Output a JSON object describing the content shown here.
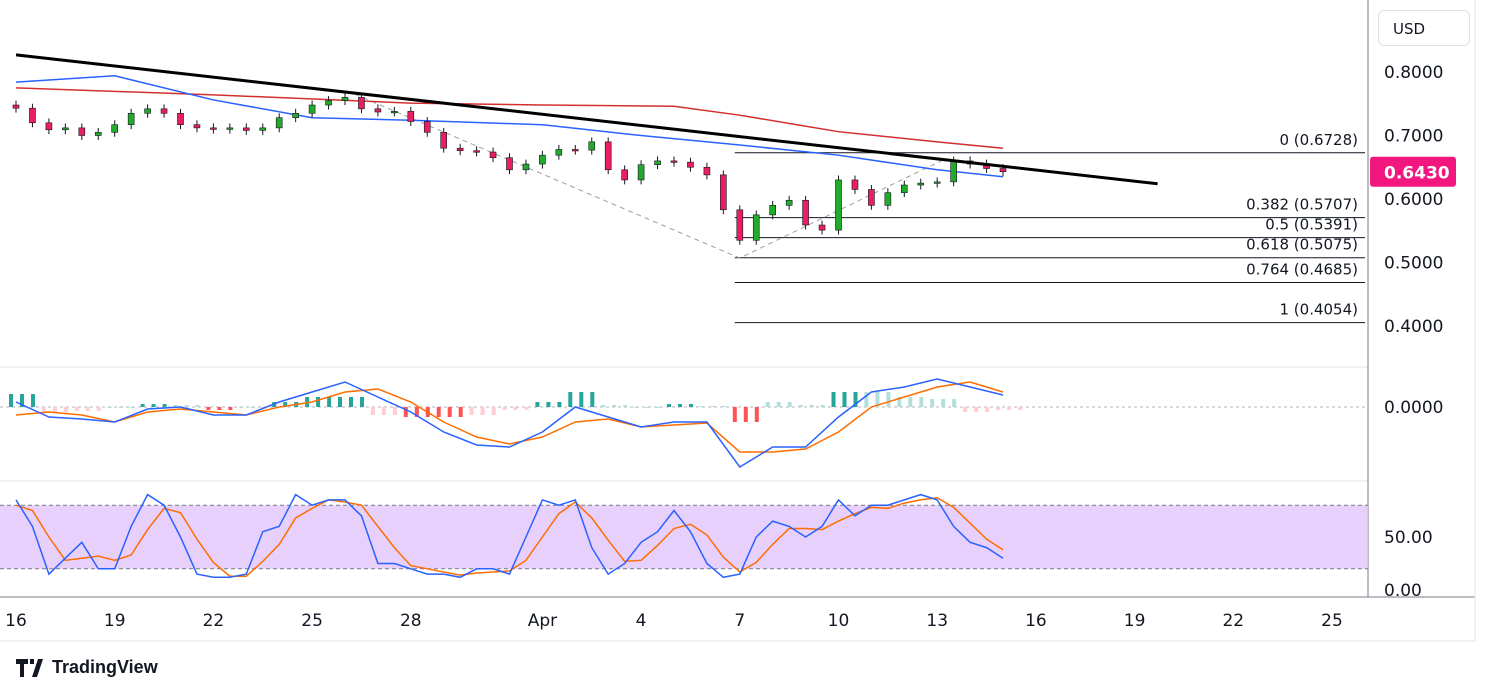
{
  "currency_button": "USD",
  "brand": "TradingView",
  "colors": {
    "up": "#22ab2b",
    "down": "#e91e63",
    "ma_fast": "#2962ff",
    "ma_slow": "#d32f2f",
    "trendline": "#000000",
    "macd": "#2962ff",
    "signal": "#ff6d00",
    "stoch_k": "#2962ff",
    "stoch_d": "#ff6d00",
    "stoch_band": "#e1c4fb",
    "price_badge": "#f2167f"
  },
  "last_price": "0.6430",
  "chart_data": [
    {
      "type": "candlestick",
      "timeframe_note": "",
      "x_tick_labels": [
        "16",
        "19",
        "22",
        "25",
        "28",
        "Apr",
        "4",
        "7",
        "10",
        "13",
        "16",
        "19",
        "22",
        "25"
      ],
      "x_tick_days": [
        0,
        3,
        6,
        9,
        12,
        16,
        19,
        22,
        25,
        28,
        31,
        34,
        37,
        40
      ],
      "y_tick_labels": [
        "0.8000",
        "0.7000",
        "0.6000",
        "0.5000",
        "0.4000"
      ],
      "ylim": [
        0.39,
        0.83
      ],
      "bar_step_days": 0.5,
      "close": [
        0.743,
        0.72,
        0.709,
        0.712,
        0.7,
        0.705,
        0.717,
        0.735,
        0.742,
        0.735,
        0.717,
        0.712,
        0.71,
        0.712,
        0.708,
        0.712,
        0.728,
        0.735,
        0.748,
        0.755,
        0.76,
        0.742,
        0.737,
        0.738,
        0.722,
        0.705,
        0.68,
        0.676,
        0.674,
        0.665,
        0.646,
        0.655,
        0.669,
        0.678,
        0.677,
        0.69,
        0.646,
        0.63,
        0.654,
        0.66,
        0.658,
        0.65,
        0.638,
        0.583,
        0.535,
        0.575,
        0.59,
        0.598,
        0.559,
        0.551,
        0.63,
        0.615,
        0.59,
        0.61,
        0.622,
        0.625,
        0.627,
        0.66,
        0.655,
        0.648,
        0.643
      ],
      "ma_fast": {
        "days": [
          0,
          3,
          6,
          9,
          12,
          16,
          19,
          22,
          25,
          28,
          30
        ],
        "values": [
          0.784,
          0.794,
          0.756,
          0.728,
          0.724,
          0.717,
          0.7,
          0.685,
          0.669,
          0.646,
          0.635
        ]
      },
      "ma_slow": {
        "days": [
          0,
          6,
          12,
          16,
          20,
          22,
          25,
          28,
          30
        ],
        "values": [
          0.775,
          0.764,
          0.751,
          0.748,
          0.746,
          0.732,
          0.706,
          0.69,
          0.68
        ]
      },
      "trendline": {
        "from": [
          0,
          0.827
        ],
        "to": [
          34.7,
          0.624
        ]
      },
      "fib_path": [
        [
          10.3,
          0.765
        ],
        [
          22,
          0.507
        ],
        [
          28.2,
          0.662
        ]
      ],
      "fib_levels": [
        {
          "label": "0 (0.6728)",
          "value": 0.6728
        },
        {
          "label": "0.382 (0.5707)",
          "value": 0.5707
        },
        {
          "label": "0.5 (0.5391)",
          "value": 0.5391
        },
        {
          "label": "0.618 (0.5075)",
          "value": 0.5075
        },
        {
          "label": "0.764 (0.4685)",
          "value": 0.4685
        },
        {
          "label": "1 (0.4054)",
          "value": 0.4054
        }
      ],
      "fib_start_day": 22
    },
    {
      "type": "macd",
      "y_tick_labels": [
        "0.0000"
      ],
      "days": [
        0,
        1,
        2,
        3,
        4,
        5,
        6,
        7,
        8,
        9,
        10,
        11,
        12,
        13,
        14,
        15,
        16,
        17,
        18,
        19,
        20,
        21,
        22,
        23,
        24,
        25,
        26,
        27,
        28,
        29,
        30
      ],
      "macd": [
        0.0025,
        -0.005,
        -0.006,
        -0.0075,
        -0.001,
        0,
        -0.004,
        -0.004,
        0.0025,
        0.0075,
        0.0125,
        0.005,
        -0.0025,
        -0.0125,
        -0.019,
        -0.02,
        -0.0125,
        0,
        -0.005,
        -0.01,
        -0.0075,
        -0.0075,
        -0.03,
        -0.02,
        -0.02,
        -0.005,
        0.0075,
        0.01,
        0.014,
        0.01,
        0.006
      ],
      "signal": [
        -0.004,
        -0.0025,
        -0.004,
        -0.0075,
        -0.0025,
        -0.001,
        -0.0025,
        -0.004,
        0,
        0.0025,
        0.0075,
        0.009,
        0.0025,
        -0.0075,
        -0.015,
        -0.0185,
        -0.015,
        -0.0075,
        -0.006,
        -0.01,
        -0.009,
        -0.008,
        -0.0225,
        -0.0225,
        -0.021,
        -0.0125,
        0,
        0.005,
        0.01,
        0.0125,
        0.0075
      ]
    },
    {
      "type": "stoch_rsi",
      "y_tick_labels": [
        "50.00",
        "0.00"
      ],
      "bands": [
        20,
        80
      ],
      "ylim": [
        0,
        100
      ],
      "bar_step_days": 0.5,
      "k": [
        85,
        60,
        15,
        30,
        45,
        20,
        20,
        60,
        90,
        80,
        50,
        15,
        12,
        12,
        15,
        55,
        60,
        90,
        80,
        85,
        85,
        70,
        25,
        25,
        20,
        15,
        15,
        12,
        20,
        20,
        15,
        50,
        85,
        80,
        85,
        40,
        15,
        25,
        45,
        55,
        75,
        55,
        25,
        12,
        15,
        50,
        65,
        60,
        50,
        60,
        85,
        70,
        80,
        80,
        85,
        90,
        85,
        60,
        45,
        40,
        30
      ],
      "d": [
        80,
        75,
        50,
        28,
        30,
        32,
        28,
        33,
        57,
        77,
        73,
        48,
        26,
        13,
        13,
        27,
        43,
        68,
        77,
        85,
        83,
        80,
        60,
        40,
        23,
        20,
        17,
        14,
        16,
        17,
        18,
        28,
        50,
        72,
        83,
        68,
        47,
        27,
        28,
        42,
        58,
        62,
        52,
        31,
        17,
        26,
        43,
        58,
        58,
        57,
        65,
        72,
        78,
        77,
        82,
        85,
        87,
        78,
        63,
        48,
        38
      ]
    }
  ]
}
